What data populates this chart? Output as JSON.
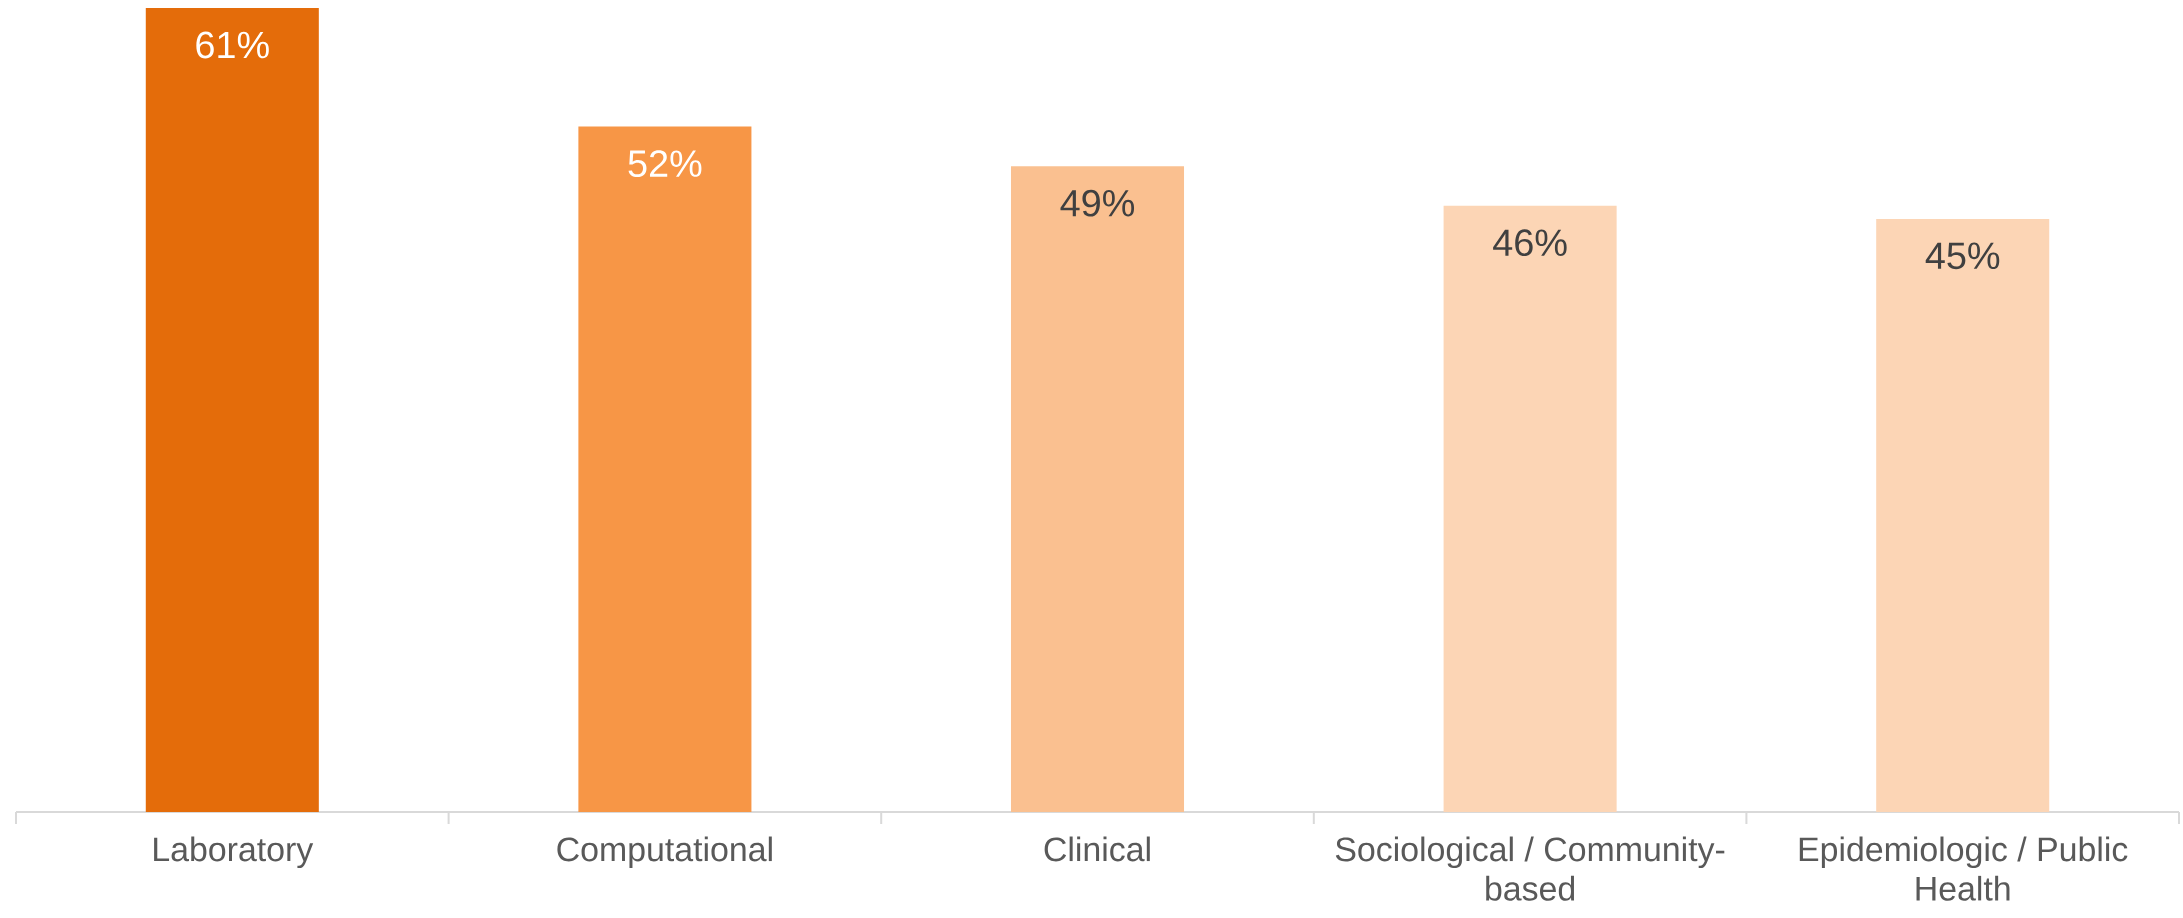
{
  "chart_data": {
    "type": "bar",
    "categories": [
      "Laboratory",
      "Computational",
      "Clinical",
      "Sociological / Community-based",
      "Epidemiologic / Public Health"
    ],
    "values": [
      61,
      52,
      49,
      46,
      45
    ],
    "colors": [
      "#e46c0a",
      "#f79646",
      "#fac090",
      "#fcd5b5",
      "#fcd5b5"
    ],
    "value_labels": [
      "61%",
      "52%",
      "49%",
      "46%",
      "45%"
    ]
  }
}
